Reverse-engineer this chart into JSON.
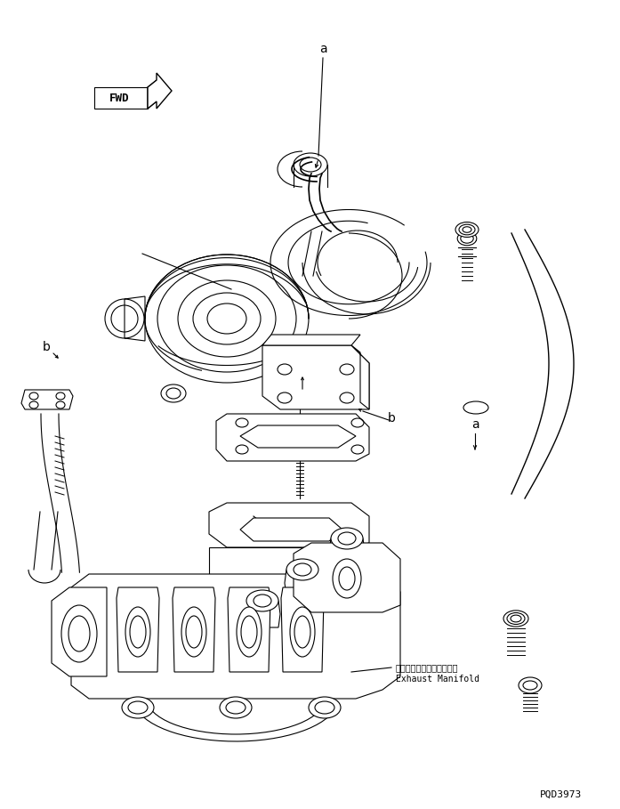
{
  "bg_color": "#ffffff",
  "line_color": "#000000",
  "fig_width": 6.97,
  "fig_height": 9.09,
  "dpi": 100,
  "part_code": "PQD3973",
  "label_a": "a",
  "label_b": "b",
  "exhaust_manifold_jp": "エキゾーストマニホールド",
  "exhaust_manifold_en": "Exhaust Manifold",
  "fwd_text": "FWD"
}
